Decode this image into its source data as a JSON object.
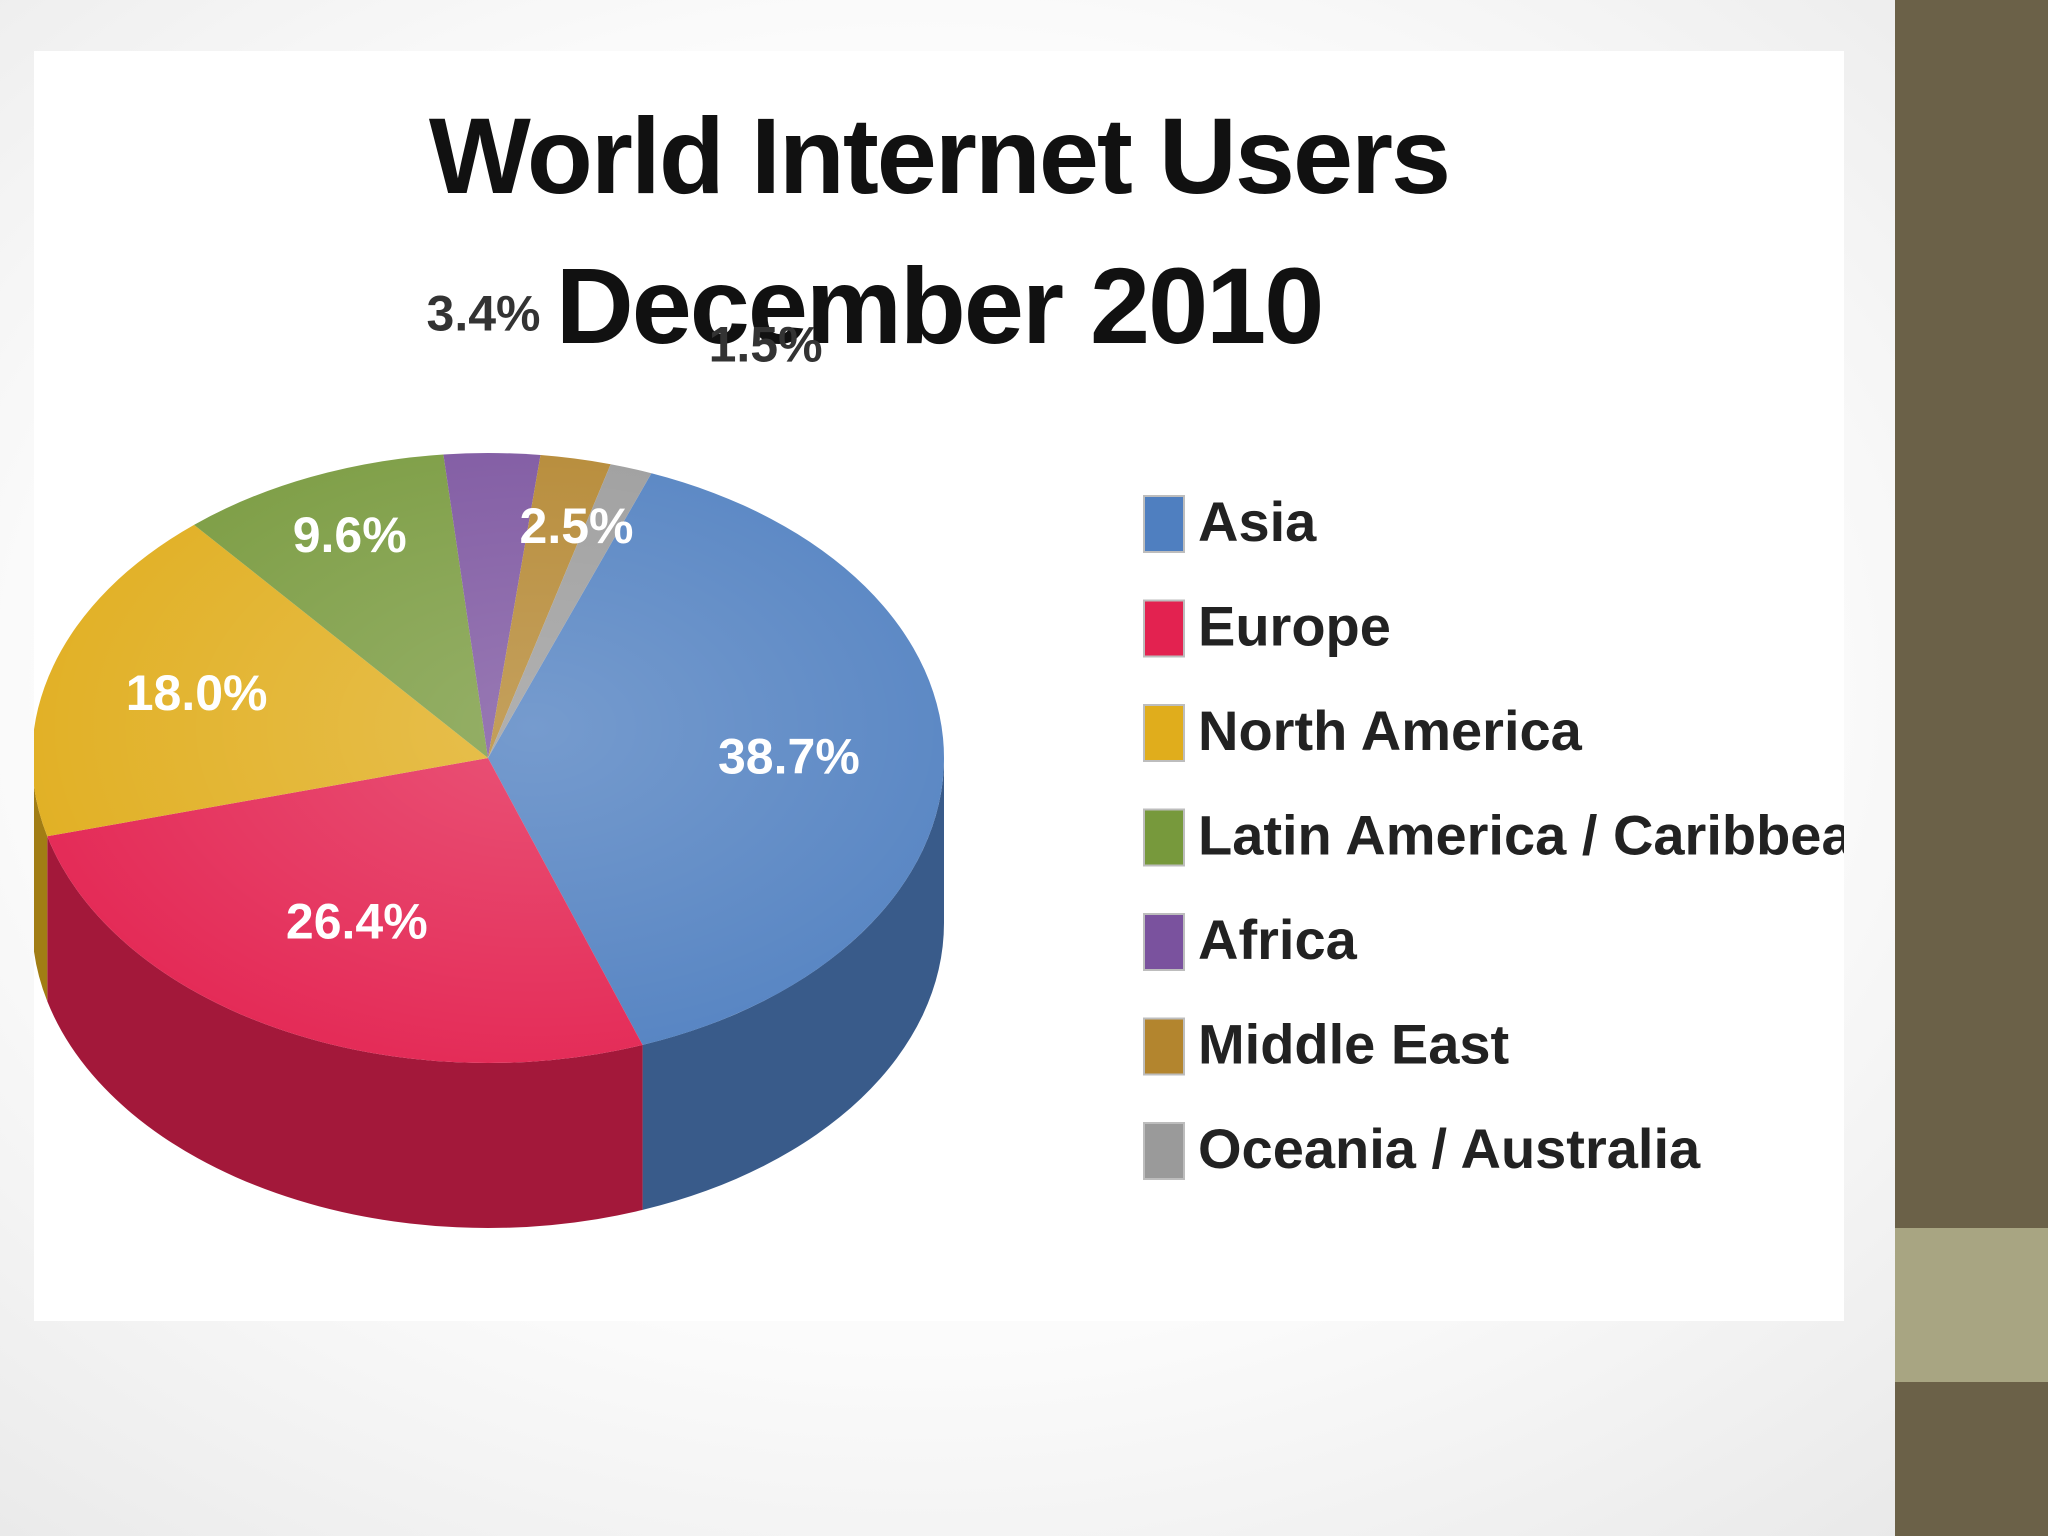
{
  "chart_data": {
    "type": "pie",
    "title": "World Internet Users",
    "subtitle": "December  2010",
    "categories": [
      "Asia",
      "Europe",
      "North America",
      "Latin America / Caribbean",
      "Africa",
      "Middle East",
      "Oceania / Australia"
    ],
    "values": [
      38.7,
      26.4,
      18.0,
      9.6,
      3.4,
      2.5,
      1.5
    ],
    "value_labels": [
      "38.7%",
      "26.4%",
      "18.0%",
      "9.6%",
      "3.4%",
      "2.5%",
      "1.5%"
    ],
    "colors": [
      "#4f7fc0",
      "#e32250",
      "#e0ad1c",
      "#77993c",
      "#7a529e",
      "#b3852e",
      "#9a9a9a"
    ],
    "legend_position": "right",
    "style": "3d"
  }
}
